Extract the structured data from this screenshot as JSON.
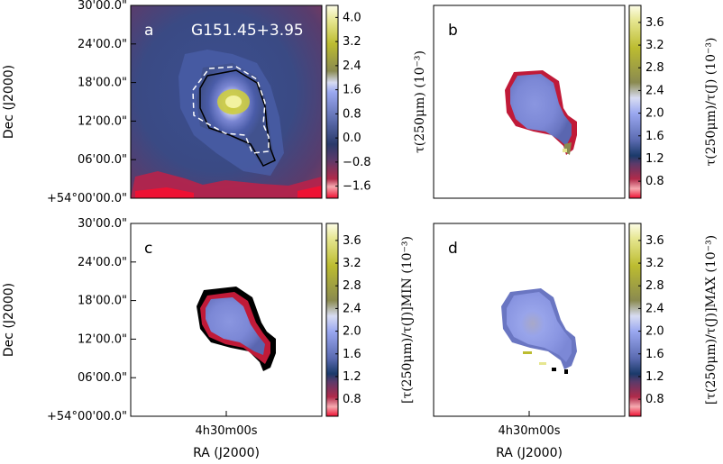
{
  "chart_data": [
    {
      "type": "heatmap",
      "panel_letter": "a",
      "annotation": "G151.45+3.95",
      "ylabel": "Dec (J2000)",
      "xlabel": "",
      "yticks": [
        "30'00.0\"",
        "24'00.0\"",
        "18'00.0\"",
        "12'00.0\"",
        "06'00.0\"",
        "+54°00'00.0\""
      ],
      "xticks": [],
      "colorbar": {
        "ticks": [
          "4.0",
          "3.2",
          "2.4",
          "1.6",
          "0.8",
          "0.0",
          "−0.8",
          "−1.6"
        ],
        "range": [
          -2.0,
          4.4
        ],
        "label": ""
      },
      "map": {
        "peak": 4.0,
        "background": -0.4,
        "min": -2.0,
        "contours": [
          "solid-black",
          "dashed-white"
        ]
      }
    },
    {
      "type": "heatmap",
      "panel_letter": "b",
      "annotation": "",
      "ylabel": "",
      "xlabel": "",
      "yticks": [],
      "xticks": [],
      "colorbar": {
        "ticks": [
          "3.6",
          "3.2",
          "2.8",
          "2.4",
          "2.0",
          "1.6",
          "1.2",
          "0.8"
        ],
        "range": [
          0.5,
          3.9
        ],
        "label": "τ(250μm)/τ(J) (10⁻³)"
      },
      "left_label": "τ(250μm) (10⁻³)",
      "map": {
        "center_value": 1.9,
        "edge_value": 0.9
      }
    },
    {
      "type": "heatmap",
      "panel_letter": "c",
      "annotation": "",
      "ylabel": "Dec (J2000)",
      "xlabel": "RA (J2000)",
      "yticks": [
        "30'00.0\"",
        "24'00.0\"",
        "18'00.0\"",
        "12'00.0\"",
        "06'00.0\"",
        "+54°00'00.0\""
      ],
      "xticks": [
        "4h30m00s"
      ],
      "colorbar": {
        "ticks": [
          "3.6",
          "3.2",
          "2.8",
          "2.4",
          "2.0",
          "1.6",
          "1.2",
          "0.8"
        ],
        "range": [
          0.5,
          3.9
        ],
        "label": "[τ(250μm)/τ(J)]MIN (10⁻³)"
      },
      "map": {
        "center_value": 1.8,
        "edge_value": 0.7
      }
    },
    {
      "type": "heatmap",
      "panel_letter": "d",
      "annotation": "",
      "ylabel": "",
      "xlabel": "RA (J2000)",
      "yticks": [],
      "xticks": [
        "4h30m00s"
      ],
      "colorbar": {
        "ticks": [
          "3.6",
          "3.2",
          "2.8",
          "2.4",
          "2.0",
          "1.6",
          "1.2",
          "0.8"
        ],
        "range": [
          0.5,
          3.9
        ],
        "label": "[τ(250μm)/τ(J)]MAX (10⁻³)"
      },
      "map": {
        "center_value": 2.3,
        "edge_value": 2.0
      }
    }
  ]
}
